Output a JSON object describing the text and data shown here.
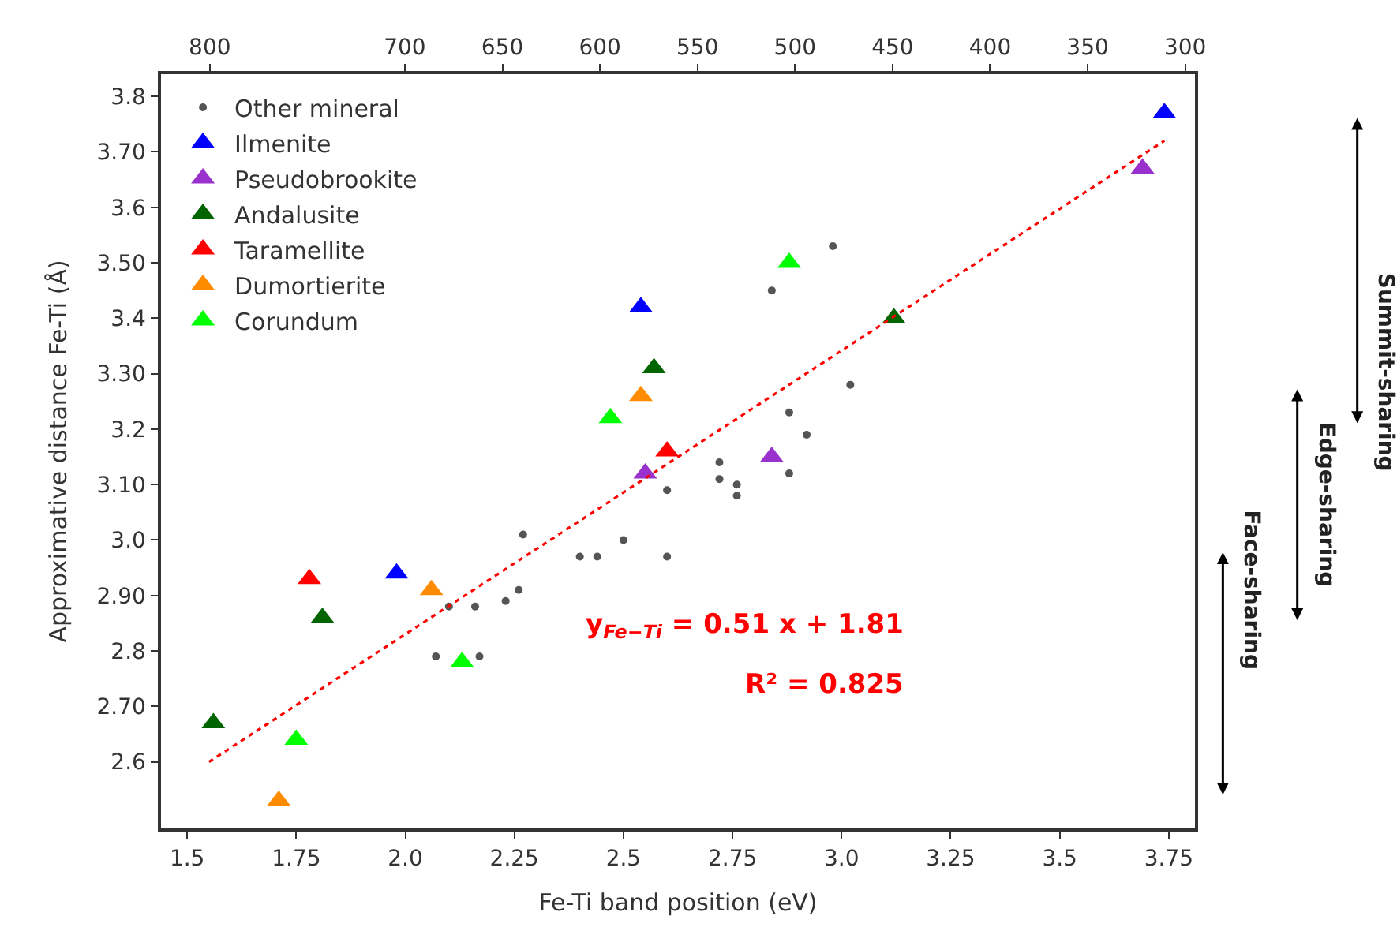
{
  "chart_data": {
    "type": "scatter",
    "xlabel": "Fe-Ti band position (eV)",
    "ylabel": "Approximative distance Fe-Ti (Å)",
    "xlim": [
      1.44,
      3.81
    ],
    "ylim": [
      2.48,
      3.84
    ],
    "xticks": [
      1.5,
      1.75,
      {
        "value": 2,
        "label": "2.0"
      },
      2.25,
      2.5,
      2.75,
      {
        "value": 3,
        "label": "3.0"
      },
      3.25,
      3.5,
      3.75
    ],
    "yticks": [
      2.6,
      {
        "value": 2.7,
        "label": "2.70"
      },
      2.8,
      {
        "value": 2.9,
        "label": "2.90"
      },
      {
        "value": 3,
        "label": "3.0"
      },
      {
        "value": 3.1,
        "label": "3.10"
      },
      3.2,
      {
        "value": 3.3,
        "label": "3.30"
      },
      3.4,
      {
        "value": 3.5,
        "label": "3.50"
      },
      3.6,
      {
        "value": 3.7,
        "label": "3.70"
      },
      3.8
    ],
    "x2lim": [
      825,
      295
    ],
    "x2ticks": [
      800,
      700,
      650,
      600,
      550,
      500,
      450,
      400,
      350,
      300
    ],
    "legend": "top left",
    "series": [
      {
        "name": "Other mineral",
        "color": "#555555",
        "marker": "circle",
        "x": [
          2.6,
          2.72,
          2.72,
          2.76,
          2.76,
          2.27,
          2.5,
          2.98,
          2.84,
          3.02,
          2.88,
          2.92,
          2.88,
          2.4,
          2.44,
          2.6,
          2.26,
          2.23,
          2.16,
          2.1,
          2.07,
          2.17
        ],
        "values": [
          3.09,
          3.14,
          3.11,
          3.1,
          3.08,
          3.01,
          3.0,
          3.53,
          3.45,
          3.28,
          3.23,
          3.19,
          3.12,
          2.97,
          2.97,
          2.97,
          2.91,
          2.89,
          2.88,
          2.88,
          2.79,
          2.79
        ]
      },
      {
        "name": "Ilmenite",
        "color": "#0000ff",
        "marker": "triangle",
        "x": [
          2.54,
          1.98,
          3.74
        ],
        "values": [
          3.42,
          2.94,
          3.77
        ]
      },
      {
        "name": "Pseudobrookite",
        "color": "#9932cc",
        "marker": "triangle",
        "x": [
          2.55,
          2.84,
          3.69
        ],
        "values": [
          3.12,
          3.15,
          3.67
        ]
      },
      {
        "name": "Andalusite",
        "color": "#006400",
        "marker": "triangle",
        "x": [
          2.57,
          1.81,
          1.56,
          3.12
        ],
        "values": [
          3.31,
          2.86,
          2.67,
          3.4
        ]
      },
      {
        "name": "Taramellite",
        "color": "#ff0000",
        "marker": "triangle",
        "x": [
          2.6,
          1.78
        ],
        "values": [
          3.16,
          2.93
        ]
      },
      {
        "name": "Dumortierite",
        "color": "#ff8c00",
        "marker": "triangle",
        "x": [
          2.54,
          2.06,
          1.71
        ],
        "values": [
          3.26,
          2.91,
          2.53
        ]
      },
      {
        "name": "Corundum",
        "color": "#00ff00",
        "marker": "triangle",
        "x": [
          2.47,
          2.88,
          2.13,
          1.75
        ],
        "values": [
          3.22,
          3.5,
          2.78,
          2.64
        ]
      },
      {
        "type": "line",
        "color": "#ff0000",
        "line_style": "dotted",
        "x": [
          1.55,
          3.74
        ],
        "values": [
          2.6,
          3.72
        ]
      }
    ],
    "annotations": [
      "y$_{Fe−Ti}$ = 0.51 x + 1.81",
      "R² = 0.825",
      "Summit-sharing",
      "Edge-sharing",
      "Face-sharing"
    ]
  }
}
